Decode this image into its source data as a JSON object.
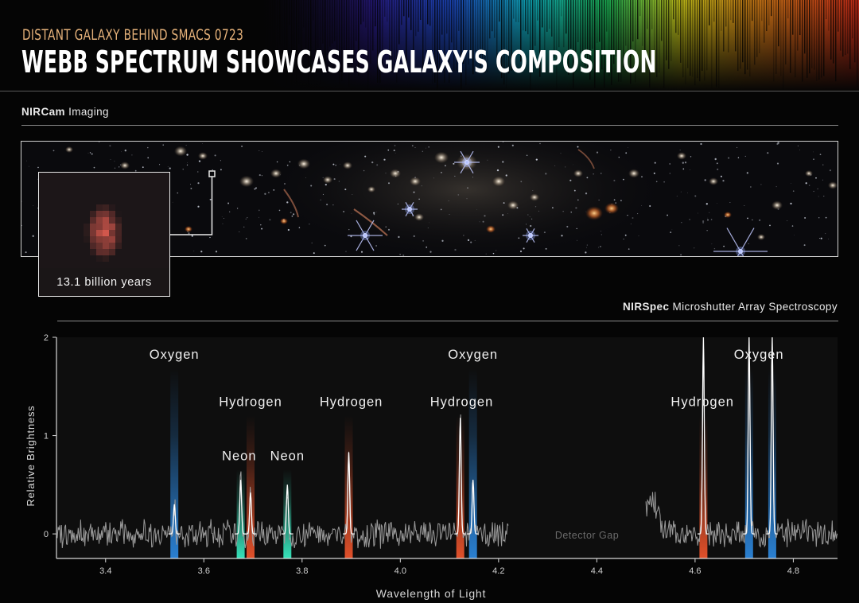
{
  "header": {
    "subtitle": "DISTANT GALAXY BEHIND SMACS 0723",
    "title": "WEBB SPECTRUM SHOWCASES GALAXY'S COMPOSITION"
  },
  "nircam": {
    "instrument": "NIRCam",
    "label": "Imaging"
  },
  "inset": {
    "caption": "13.1 billion years"
  },
  "nirspec": {
    "instrument": "NIRSpec",
    "label": "Microshutter Array Spectroscopy"
  },
  "chart_data": {
    "type": "line",
    "xlabel": "Wavelength of Light",
    "ylabel": "Relative Brightness",
    "xlim": [
      3.3,
      4.89
    ],
    "ylim": [
      -0.25,
      2
    ],
    "xticks": [
      3.4,
      3.6,
      3.8,
      4.0,
      4.2,
      4.4,
      4.6,
      4.8
    ],
    "xtick_labels": [
      "3.4",
      "3.6",
      "3.8",
      "4.0",
      "4.2",
      "4.4",
      "4.6",
      "4.8"
    ],
    "yticks": [
      0,
      1,
      2
    ],
    "ytick_labels": [
      "0",
      "1",
      "2"
    ],
    "grid": false,
    "detector_gap": {
      "range": [
        4.22,
        4.5
      ],
      "label": "Detector Gap"
    },
    "emission_lines": [
      {
        "element": "Oxygen",
        "wavelength": 3.54,
        "peak": 0.3,
        "color": "#2a7fd0",
        "label_level": 1.78
      },
      {
        "element": "Neon",
        "wavelength": 3.675,
        "peak": 0.55,
        "color": "#36e0b8",
        "label_level": 0.75
      },
      {
        "element": "Hydrogen",
        "wavelength": 3.695,
        "peak": 0.42,
        "color": "#e0502a",
        "label_level": 1.3
      },
      {
        "element": "Neon",
        "wavelength": 3.77,
        "peak": 0.5,
        "color": "#36e0b8",
        "label_level": 0.75
      },
      {
        "element": "Hydrogen",
        "wavelength": 3.895,
        "peak": 0.83,
        "color": "#e0502a",
        "label_level": 1.3
      },
      {
        "element": "Hydrogen",
        "wavelength": 4.122,
        "peak": 1.18,
        "color": "#e0502a",
        "label_level": 1.3
      },
      {
        "element": "Oxygen",
        "wavelength": 4.148,
        "peak": 0.55,
        "color": "#2a7fd0",
        "label_level": 1.78
      },
      {
        "element": "Hydrogen",
        "wavelength": 4.617,
        "peak": 2.0,
        "color": "#e0502a",
        "label_level": 1.3
      },
      {
        "element": "Oxygen",
        "wavelength": 4.71,
        "peak": 2.0,
        "color": "#2a7fd0",
        "label_level": 1.78
      },
      {
        "element": "Oxygen",
        "wavelength": 4.757,
        "peak": 2.0,
        "color": "#2a7fd0",
        "label_level": 1.78
      }
    ],
    "line_labels": [
      {
        "text": "Oxygen",
        "x": 3.54,
        "y": 1.78
      },
      {
        "text": "Hydrogen",
        "x": 3.695,
        "y": 1.3
      },
      {
        "text": "Neon",
        "x": 3.672,
        "y": 0.75
      },
      {
        "text": "Neon",
        "x": 3.77,
        "y": 0.75
      },
      {
        "text": "Hydrogen",
        "x": 3.9,
        "y": 1.3
      },
      {
        "text": "Oxygen",
        "x": 4.148,
        "y": 1.78
      },
      {
        "text": "Hydrogen",
        "x": 4.125,
        "y": 1.3
      },
      {
        "text": "Hydrogen",
        "x": 4.615,
        "y": 1.3
      },
      {
        "text": "Oxygen",
        "x": 4.73,
        "y": 1.78
      }
    ],
    "spectrum_color": "#9a9a9a"
  }
}
